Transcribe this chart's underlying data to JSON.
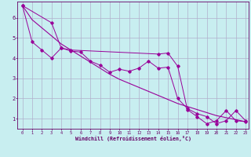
{
  "xlabel": "Windchill (Refroidissement éolien,°C)",
  "background_color": "#c8eef0",
  "grid_color": "#b0b0cc",
  "line_color": "#990099",
  "xlim": [
    -0.5,
    23.3
  ],
  "ylim": [
    0.5,
    6.8
  ],
  "xticks": [
    0,
    1,
    2,
    3,
    4,
    5,
    6,
    7,
    8,
    9,
    10,
    11,
    12,
    13,
    14,
    15,
    16,
    17,
    18,
    19,
    20,
    21,
    22,
    23
  ],
  "yticks": [
    1,
    2,
    3,
    4,
    5,
    6
  ],
  "line1_x": [
    0,
    1,
    2,
    3,
    4,
    5,
    6,
    7,
    8,
    9,
    10,
    11,
    12,
    13,
    14,
    15,
    16,
    17,
    18,
    19,
    20,
    21,
    22,
    23
  ],
  "line1_y": [
    6.6,
    4.8,
    4.4,
    4.0,
    4.5,
    4.35,
    4.3,
    3.85,
    3.65,
    3.3,
    3.45,
    3.35,
    3.5,
    3.85,
    3.5,
    3.55,
    2.0,
    1.5,
    1.25,
    1.1,
    0.75,
    0.9,
    1.4,
    0.9
  ],
  "line2_x": [
    0,
    3,
    4,
    5,
    14,
    15,
    16,
    17,
    18,
    19,
    20,
    21,
    22,
    23
  ],
  "line2_y": [
    6.6,
    5.75,
    4.5,
    4.4,
    4.2,
    4.25,
    3.6,
    1.45,
    1.1,
    0.75,
    0.9,
    1.4,
    0.9,
    0.85
  ],
  "line3_x": [
    0,
    1,
    2,
    3,
    4,
    5,
    6,
    7,
    8,
    9,
    10,
    11,
    12,
    13,
    14,
    15,
    16,
    17,
    18,
    19,
    20,
    21,
    22,
    23
  ],
  "line3_y": [
    6.6,
    5.9,
    5.5,
    5.1,
    4.7,
    4.4,
    4.1,
    3.8,
    3.5,
    3.2,
    2.95,
    2.75,
    2.55,
    2.35,
    2.15,
    1.95,
    1.75,
    1.6,
    1.45,
    1.3,
    1.15,
    1.05,
    0.95,
    0.85
  ],
  "xticklabels": [
    "0",
    "1",
    "2",
    "3",
    "4",
    "5",
    "6",
    "7",
    "8",
    "9",
    "10",
    "11",
    "12",
    "13",
    "14",
    "15",
    "16",
    "17",
    "18",
    "19",
    "20",
    "21",
    "22",
    "23"
  ]
}
